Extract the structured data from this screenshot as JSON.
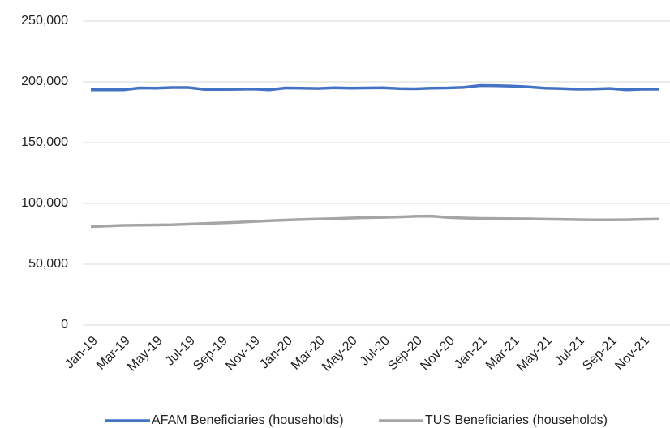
{
  "chart_data": {
    "type": "line",
    "categories": [
      "Jan-19",
      null,
      "Mar-19",
      null,
      "May-19",
      null,
      "Jul-19",
      null,
      "Sep-19",
      null,
      "Nov-19",
      null,
      "Jan-20",
      null,
      "Mar-20",
      null,
      "May-20",
      null,
      "Jul-20",
      null,
      "Sep-20",
      null,
      "Nov-20",
      null,
      "Jan-21",
      null,
      "Mar-21",
      null,
      "May-21",
      null,
      "Jul-21",
      null,
      "Sep-21",
      null,
      "Nov-21",
      null
    ],
    "series": [
      {
        "name": "AFAM Beneficiaries (households)",
        "color": "#4472c4",
        "values": [
          193500,
          193500,
          193500,
          195000,
          194800,
          195300,
          195300,
          193800,
          193800,
          193900,
          194200,
          193500,
          195000,
          194800,
          194600,
          195200,
          194800,
          195000,
          195200,
          194500,
          194300,
          194800,
          195000,
          195500,
          197000,
          196800,
          196500,
          195800,
          194800,
          194500,
          194000,
          194200,
          194600,
          193500,
          194000,
          194000
        ]
      },
      {
        "name": "TUS Beneficiaries (households)",
        "color": "#a5a5a5",
        "values": [
          81000,
          81500,
          82000,
          82200,
          82300,
          82500,
          83000,
          83500,
          84000,
          84500,
          85200,
          85800,
          86300,
          86800,
          87200,
          87500,
          88000,
          88300,
          88600,
          88900,
          89400,
          89600,
          88500,
          88000,
          87700,
          87600,
          87400,
          87300,
          87100,
          86900,
          86700,
          86500,
          86500,
          86600,
          86900,
          87200
        ]
      }
    ],
    "ylim": [
      0,
      250000
    ],
    "yticks": [
      0,
      {
        "value": 50000,
        "label": "50,000"
      },
      {
        "value": 100000,
        "label": "100,000"
      },
      {
        "value": 150000,
        "label": "150,000"
      },
      {
        "value": 200000,
        "label": "200,000"
      },
      {
        "value": 250000,
        "label": "250,000"
      }
    ],
    "grid": true,
    "legend": "bottom"
  }
}
